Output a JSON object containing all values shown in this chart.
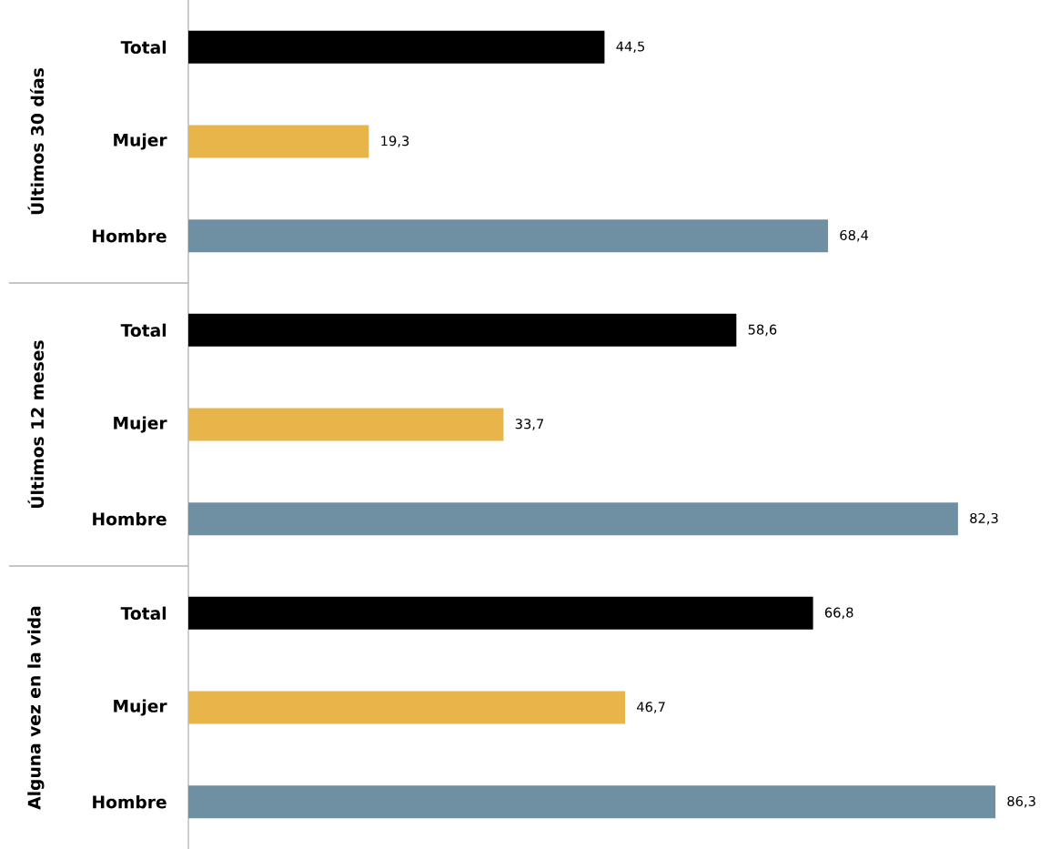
{
  "chart_data": [
    {
      "type": "bar",
      "orientation": "horizontal",
      "ylabel": "Últimos 30 días",
      "categories": [
        "Total",
        "Mujer",
        "Hombre"
      ],
      "values": [
        44.5,
        19.3,
        68.4
      ],
      "colors": [
        "#000000",
        "#e8b54a",
        "#6f8fa3"
      ],
      "value_labels": [
        "44,5",
        "19,3",
        "68,4"
      ]
    },
    {
      "type": "bar",
      "orientation": "horizontal",
      "ylabel": "Últimos 12 meses",
      "categories": [
        "Total",
        "Mujer",
        "Hombre"
      ],
      "values": [
        58.6,
        33.7,
        82.3
      ],
      "colors": [
        "#000000",
        "#e8b54a",
        "#6f8fa3"
      ],
      "value_labels": [
        "58,6",
        "33,7",
        "82,3"
      ]
    },
    {
      "type": "bar",
      "orientation": "horizontal",
      "ylabel": "Alguna vez en la vida",
      "categories": [
        "Total",
        "Mujer",
        "Hombre"
      ],
      "values": [
        66.8,
        46.7,
        86.3
      ],
      "colors": [
        "#000000",
        "#e8b54a",
        "#6f8fa3"
      ],
      "value_labels": [
        "66,8",
        "46,7",
        "86,3"
      ]
    }
  ]
}
